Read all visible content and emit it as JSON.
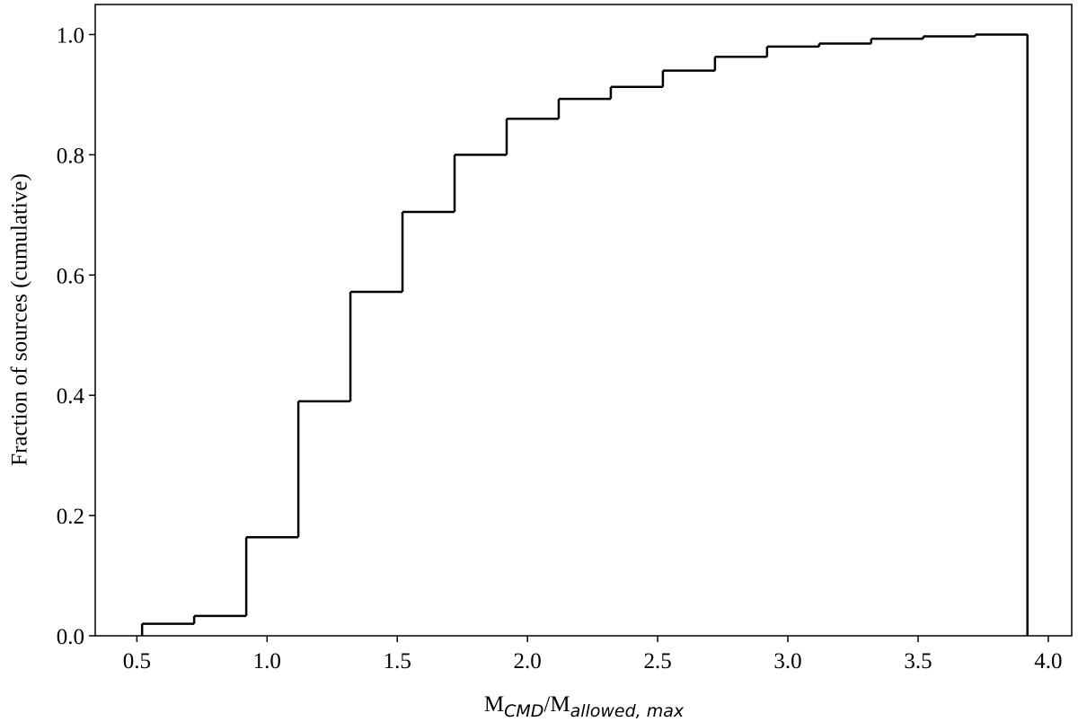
{
  "chart_data": {
    "type": "histogram",
    "xlabel": [
      "M",
      "CMD",
      "/M",
      "allowed, max"
    ],
    "ylabel": "Fraction of sources (cumulative)",
    "bins": [
      0.52,
      0.72,
      0.92,
      1.12,
      1.32,
      1.52,
      1.72,
      1.92,
      2.12,
      2.32,
      2.52,
      2.72,
      2.92,
      3.12,
      3.32,
      3.52,
      3.72,
      3.92
    ],
    "values": [
      0.02,
      0.033,
      0.164,
      0.39,
      0.572,
      0.705,
      0.8,
      0.86,
      0.893,
      0.913,
      0.94,
      0.963,
      0.98,
      0.985,
      0.993,
      0.997,
      1.0
    ],
    "color": "#000000",
    "xlim": [
      0.34,
      4.09
    ],
    "ylim": [
      0,
      1.05
    ],
    "xticks": [
      0.5,
      {
        "value": 1,
        "label": "1.0"
      },
      1.5,
      {
        "value": 2,
        "label": "2.0"
      },
      2.5,
      {
        "value": 3,
        "label": "3.0"
      },
      3.5,
      {
        "value": 4,
        "label": "4.0"
      }
    ],
    "yticks": [
      {
        "value": 0,
        "label": "0.0"
      },
      0.2,
      0.4,
      0.6,
      0.8,
      {
        "value": 1,
        "label": "1.0"
      }
    ]
  }
}
